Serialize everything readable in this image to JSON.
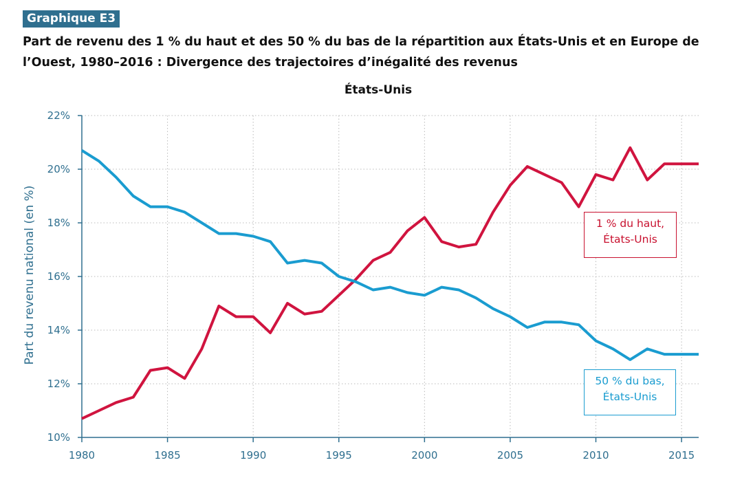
{
  "header": {
    "badge": "Graphique E3",
    "title": "Part de revenu des 1 % du haut et des 50 % du bas de la répartition aux États-Unis et en Europe de l’Ouest, 1980–2016 : Divergence des trajectoires d’inégalité des revenus"
  },
  "chart_data": {
    "type": "line",
    "title": "États-Unis",
    "xlabel": "",
    "ylabel": "Part du revenu national (en %)",
    "xlim": [
      1980,
      2016
    ],
    "ylim": [
      10,
      22
    ],
    "x_ticks": [
      1980,
      1985,
      1990,
      1995,
      2000,
      2005,
      2010,
      2015
    ],
    "y_ticks": [
      "10%",
      "12%",
      "14%",
      "16%",
      "18%",
      "20%",
      "22%"
    ],
    "grid": true,
    "x": [
      1980,
      1981,
      1982,
      1983,
      1984,
      1985,
      1986,
      1987,
      1988,
      1989,
      1990,
      1991,
      1992,
      1993,
      1994,
      1995,
      1996,
      1997,
      1998,
      1999,
      2000,
      2001,
      2002,
      2003,
      2004,
      2005,
      2006,
      2007,
      2008,
      2009,
      2010,
      2011,
      2012,
      2013,
      2014,
      2015,
      2016
    ],
    "series": [
      {
        "name": "1 % du haut, États-Unis",
        "color": "#d0143f",
        "values": [
          10.7,
          11.0,
          11.3,
          11.5,
          12.5,
          12.6,
          12.2,
          13.3,
          14.9,
          14.5,
          14.5,
          13.9,
          15.0,
          14.6,
          14.7,
          15.3,
          15.9,
          16.6,
          16.9,
          17.7,
          18.2,
          17.3,
          17.1,
          17.2,
          18.4,
          19.4,
          20.1,
          19.8,
          19.5,
          18.6,
          19.8,
          19.6,
          20.8,
          19.6,
          20.2,
          20.2,
          20.2
        ]
      },
      {
        "name": "50 % du bas, États-Unis",
        "color": "#1a9cd0",
        "values": [
          20.7,
          20.3,
          19.7,
          19.0,
          18.6,
          18.6,
          18.4,
          18.0,
          17.6,
          17.6,
          17.5,
          17.3,
          16.5,
          16.6,
          16.5,
          16.0,
          15.8,
          15.5,
          15.6,
          15.4,
          15.3,
          15.6,
          15.5,
          15.2,
          14.8,
          14.5,
          14.1,
          14.3,
          14.3,
          14.2,
          13.6,
          13.3,
          12.9,
          13.3,
          13.1,
          13.1,
          13.1
        ]
      }
    ],
    "annotations": [
      {
        "series": 0,
        "text_line1": "1 % du haut,",
        "text_line2": "États-Unis"
      },
      {
        "series": 1,
        "text_line1": "50 % du bas,",
        "text_line2": "États-Unis"
      }
    ]
  }
}
